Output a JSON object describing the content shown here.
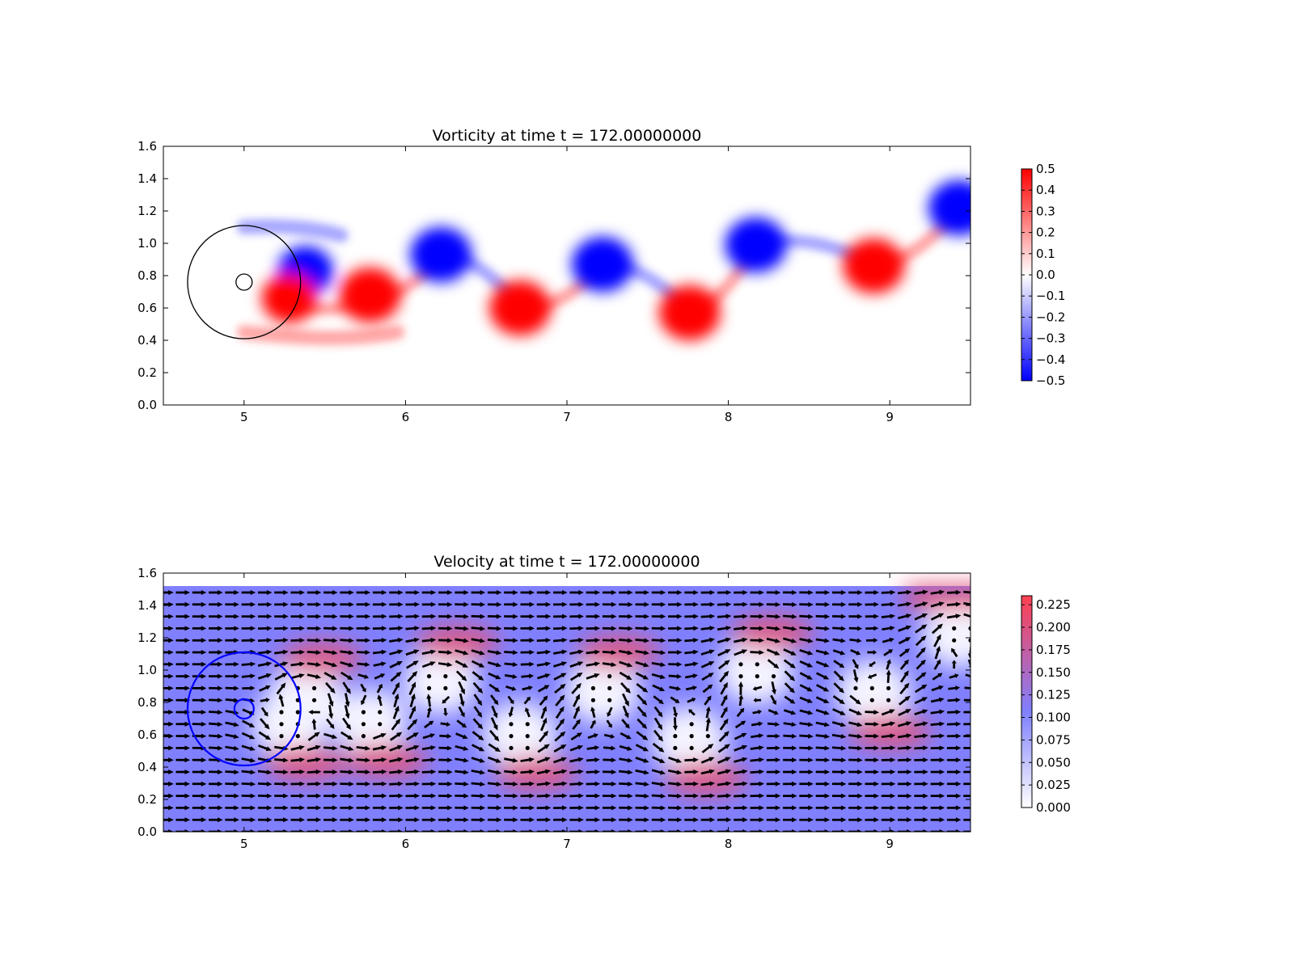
{
  "chart_data": [
    {
      "type": "heatmap",
      "title": "Vorticity at time t =   172.00000000",
      "xlabel": "",
      "ylabel": "",
      "xlim": [
        4.5,
        9.5
      ],
      "ylim": [
        0.0,
        1.6
      ],
      "x_ticks": [
        "5",
        "6",
        "7",
        "8",
        "9"
      ],
      "y_ticks": [
        "0.0",
        "0.2",
        "0.4",
        "0.6",
        "0.8",
        "1.0",
        "1.2",
        "1.4",
        "1.6"
      ],
      "colorbar": {
        "range": [
          -0.5,
          0.5
        ],
        "ticks": [
          "0.5",
          "0.4",
          "0.3",
          "0.2",
          "0.1",
          "0.0",
          "−0.1",
          "−0.2",
          "−0.3",
          "−0.4",
          "−0.5"
        ],
        "colors": [
          "#0000ff",
          "#ffffff",
          "#ff0000"
        ]
      },
      "circles": [
        {
          "cx": 5.0,
          "cy": 0.76,
          "r": 0.35,
          "color": "#000000"
        },
        {
          "cx": 5.0,
          "cy": 0.76,
          "r": 0.05,
          "color": "#000000"
        }
      ],
      "vortices": [
        {
          "x": 5.38,
          "y": 0.83,
          "sign": -1,
          "strength": 0.9
        },
        {
          "x": 5.28,
          "y": 0.66,
          "sign": 1,
          "strength": 0.9
        },
        {
          "x": 5.78,
          "y": 0.68,
          "sign": 1,
          "strength": 1.0
        },
        {
          "x": 6.22,
          "y": 0.93,
          "sign": -1,
          "strength": 1.0
        },
        {
          "x": 6.71,
          "y": 0.6,
          "sign": 1,
          "strength": 1.0
        },
        {
          "x": 7.22,
          "y": 0.87,
          "sign": -1,
          "strength": 1.0
        },
        {
          "x": 7.76,
          "y": 0.57,
          "sign": 1,
          "strength": 1.0
        },
        {
          "x": 8.17,
          "y": 0.99,
          "sign": -1,
          "strength": 1.0
        },
        {
          "x": 8.9,
          "y": 0.86,
          "sign": 1,
          "strength": 1.0
        },
        {
          "x": 9.43,
          "y": 1.22,
          "sign": -1,
          "strength": 1.0
        }
      ]
    },
    {
      "type": "heatmap",
      "title": "Velocity at time t =   172.00000000",
      "xlabel": "",
      "ylabel": "",
      "xlim": [
        4.5,
        9.5
      ],
      "ylim": [
        0.0,
        1.6
      ],
      "x_ticks": [
        "5",
        "6",
        "7",
        "8",
        "9"
      ],
      "y_ticks": [
        "0.0",
        "0.2",
        "0.4",
        "0.6",
        "0.8",
        "1.0",
        "1.2",
        "1.4",
        "1.6"
      ],
      "data_ymax": 1.52,
      "colorbar": {
        "range": [
          0.0,
          0.235
        ],
        "ticks": [
          "0.225",
          "0.200",
          "0.175",
          "0.150",
          "0.125",
          "0.100",
          "0.075",
          "0.050",
          "0.025",
          "0.000"
        ],
        "tick_values": [
          0.225,
          0.2,
          0.175,
          0.15,
          0.125,
          0.1,
          0.075,
          0.05,
          0.025,
          0.0
        ],
        "colors": [
          "#ffffff",
          "#8080ff",
          "#ff4050"
        ]
      },
      "circles": [
        {
          "cx": 5.0,
          "cy": 0.76,
          "r": 0.35,
          "color": "#0000ff"
        },
        {
          "cx": 5.0,
          "cy": 0.76,
          "r": 0.06,
          "color": "#0000ff"
        }
      ],
      "background_speed": 0.1,
      "quiver": "arrows drawn on a regular grid, stagnant regions shown as dots"
    }
  ]
}
